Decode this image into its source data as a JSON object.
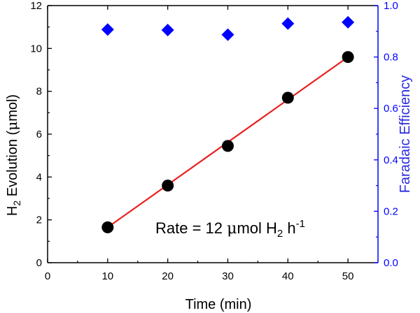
{
  "chart_data": {
    "type": "scatter",
    "title": "",
    "xlabel": "Time (min)",
    "ylabel_parts": [
      "H",
      "2",
      " Evolution (",
      "μ",
      "mol)"
    ],
    "y2label": "Faradaic Efficiency",
    "xlim": [
      0,
      55
    ],
    "ylim": [
      0,
      12
    ],
    "y2lim": [
      0.0,
      1.0
    ],
    "x_ticks": [
      "0",
      "10",
      "20",
      "30",
      "40",
      "50"
    ],
    "x_tick_values": [
      0,
      10,
      20,
      30,
      40,
      50
    ],
    "y_ticks": [
      "0",
      "2",
      "4",
      "6",
      "8",
      "10",
      "12"
    ],
    "y_tick_values": [
      0,
      2,
      4,
      6,
      8,
      10,
      12
    ],
    "y2_ticks": [
      "0.0",
      "0.2",
      "0.4",
      "0.6",
      "0.8",
      "1.0"
    ],
    "y2_tick_values": [
      0.0,
      0.2,
      0.4,
      0.6,
      0.8,
      1.0
    ],
    "series": [
      {
        "name": "H2 Evolution",
        "axis": "left",
        "marker": "circle",
        "color": "#000000",
        "x": [
          10,
          20,
          30,
          40,
          50
        ],
        "values": [
          1.65,
          3.6,
          5.45,
          7.7,
          9.6
        ]
      },
      {
        "name": "Faradaic Efficiency",
        "axis": "right",
        "marker": "diamond",
        "color": "#0000ff",
        "x": [
          10,
          20,
          30,
          40,
          50
        ],
        "values": [
          0.907,
          0.905,
          0.887,
          0.93,
          0.935
        ]
      }
    ],
    "fit_line": {
      "name": "linear fit",
      "color": "#e8201f",
      "x": [
        10,
        50
      ],
      "values": [
        1.65,
        9.6
      ]
    },
    "annotation_parts": [
      "Rate = 12 ",
      "μ",
      "mol H",
      "2",
      " h",
      "-1"
    ],
    "colors": {
      "axis": "#000000",
      "right_axis": "#0000ff",
      "right_label": "#2a2ae0"
    }
  }
}
